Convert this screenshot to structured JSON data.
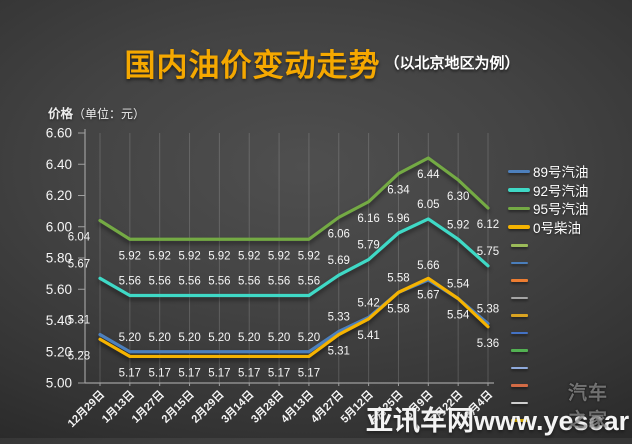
{
  "title": {
    "main": "国内油价变动走势",
    "sub": "（以北京地区为例）"
  },
  "unit_label": {
    "bold": "价格",
    "rest": "（单位：元）"
  },
  "watermark": {
    "site": "亚讯车网www.yescar",
    "overlay": "汽车之家"
  },
  "colors": {
    "title_accent": "#f5a800",
    "background_dark": "#343434",
    "axis": "#9f9f9f",
    "gridline": "rgba(255,255,255,0.16)",
    "label_text": "#ffffff"
  },
  "chart_data": {
    "type": "line",
    "title": "国内油价变动走势（以北京地区为例）",
    "xlabel": "",
    "ylabel": "价格（单位：元）",
    "ylim": [
      5.0,
      6.6
    ],
    "ytick_step": 0.2,
    "ytick_labels": [
      "6.60",
      "6.40",
      "6.20",
      "6.00",
      "5.80",
      "5.60",
      "5.40",
      "5.20",
      "5.00"
    ],
    "grid": "vertical-only",
    "legend_position": "right",
    "categories": [
      "12月29日",
      "1月13日",
      "1月27日",
      "2月15日",
      "2月29日",
      "3月14日",
      "3月28日",
      "4月13日",
      "4月27日",
      "5月12日",
      "5月25日",
      "6月9日",
      "7月22日",
      "8月4日"
    ],
    "series": [
      {
        "name": "89号汽油",
        "color": "#4d80bd",
        "label_side": "above",
        "values": [
          5.31,
          5.2,
          5.2,
          5.2,
          5.2,
          5.2,
          5.2,
          5.2,
          5.33,
          5.42,
          5.58,
          5.66,
          5.54,
          5.38
        ]
      },
      {
        "name": "92号汽油",
        "color": "#3fd9c6",
        "label_side": "above",
        "values": [
          5.67,
          5.56,
          5.56,
          5.56,
          5.56,
          5.56,
          5.56,
          5.56,
          5.69,
          5.79,
          5.96,
          6.05,
          5.92,
          5.75
        ]
      },
      {
        "name": "95号汽油",
        "color": "#74aa44",
        "label_side": "below",
        "values": [
          6.04,
          5.92,
          5.92,
          5.92,
          5.92,
          5.92,
          5.92,
          5.92,
          6.06,
          6.16,
          6.34,
          6.44,
          6.3,
          6.12
        ]
      },
      {
        "name": "0号柴油",
        "color": "#f5b301",
        "label_side": "below",
        "values": [
          5.28,
          5.17,
          5.17,
          5.17,
          5.17,
          5.17,
          5.17,
          5.17,
          5.31,
          5.41,
          5.58,
          5.67,
          5.54,
          5.36
        ]
      }
    ],
    "extra_legend_swatches": [
      "#9bbb59",
      "#4a7ebb",
      "#ed7d31",
      "#a5a5a5",
      "#d9a321",
      "#4472c4",
      "#52b152",
      "#8faadc",
      "#d26b45",
      "#cfcfcf",
      "#e8b800"
    ]
  }
}
